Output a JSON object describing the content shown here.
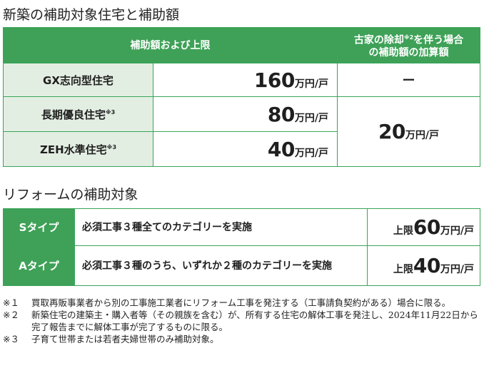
{
  "new_build": {
    "title": "新築の補助対象住宅と補助額",
    "header_left": "補助額および上限",
    "header_right_line1": "古家の除却",
    "header_right_sup": "※2",
    "header_right_line1b": "を伴う場合",
    "header_right_line2": "の補助額の加算額",
    "rows": [
      {
        "label": "GX志向型住宅",
        "sup": "",
        "amount": "160",
        "unit": "万円/戸"
      },
      {
        "label": "長期優良住宅",
        "sup": "※3",
        "amount": "80",
        "unit": "万円/戸"
      },
      {
        "label": "ZEH水準住宅",
        "sup": "※3",
        "amount": "40",
        "unit": "万円/戸"
      }
    ],
    "gx_addition": "ー",
    "addition_amount": "20",
    "addition_unit": "万円/戸"
  },
  "reform": {
    "title": "リフォームの補助対象",
    "rows": [
      {
        "type": "Sタイプ",
        "desc": "必須工事３種全てのカテゴリーを実施",
        "limit_label": "上限",
        "amount": "60",
        "unit": "万円/戸"
      },
      {
        "type": "Aタイプ",
        "desc": "必須工事３種のうち、いずれか２種のカテゴリーを実施",
        "limit_label": "上限",
        "amount": "40",
        "unit": "万円/戸"
      }
    ]
  },
  "notes": [
    {
      "mark": "※１",
      "text": "買取再販事業者から別の工事施工業者にリフォーム工事を発注する（工事請負契約がある）場合に限る。"
    },
    {
      "mark": "※２",
      "text": "新築住宅の建築主・購入者等（その親族を含む）が、所有する住宅の解体工事を発注し、2024年11月22日から完了報告までに解体工事が完了するものに限る。"
    },
    {
      "mark": "※３",
      "text": "子育て世帯または若者夫婦世帯のみ補助対象。"
    }
  ],
  "colors": {
    "accent": "#3ea157",
    "label_bg": "#e3eee3"
  }
}
